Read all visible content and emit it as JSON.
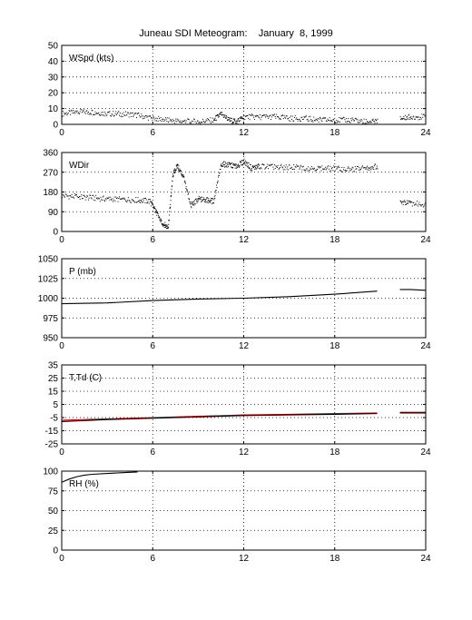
{
  "title": "Juneau SDI Meteogram:    January  8, 1999",
  "colors": {
    "black": "#000000",
    "red": "#cc0000"
  },
  "chart_data": [
    {
      "type": "scatter",
      "label": "WSpd (kts)",
      "xlim": [
        0,
        24
      ],
      "xticks": [
        0,
        6,
        12,
        18,
        24
      ],
      "ylim": [
        0,
        50
      ],
      "yticks": [
        0,
        10,
        20,
        30,
        40,
        50
      ],
      "grid": true,
      "series": [
        {
          "color": "#000000",
          "style": "dots",
          "x": [
            0,
            1,
            2,
            3,
            4,
            5,
            6,
            7,
            8,
            9,
            10,
            10.5,
            11,
            11.5,
            12,
            13,
            14,
            15,
            16,
            17,
            18,
            19,
            20,
            20.8,
            22.3,
            23,
            24
          ],
          "y": [
            7,
            8,
            8,
            7,
            7,
            6,
            4,
            3,
            2,
            2,
            3,
            7,
            3,
            2,
            5,
            5,
            5,
            4,
            4,
            3,
            3,
            3,
            2,
            2,
            4,
            5,
            5
          ]
        }
      ]
    },
    {
      "type": "scatter",
      "label": "WDir",
      "xlim": [
        0,
        24
      ],
      "xticks": [
        0,
        6,
        12,
        18,
        24
      ],
      "ylim": [
        0,
        360
      ],
      "yticks": [
        0,
        90,
        180,
        270,
        360
      ],
      "grid": true,
      "series": [
        {
          "color": "#000000",
          "style": "dots",
          "x": [
            0,
            1,
            2,
            3,
            4,
            5,
            5.8,
            6.2,
            6.6,
            7,
            7.3,
            7.6,
            8,
            8.5,
            9,
            9.5,
            10,
            10.5,
            11,
            11.5,
            12,
            12.5,
            13,
            14,
            15,
            16,
            17,
            18,
            19,
            20,
            20.8,
            22.3,
            23,
            24
          ],
          "y": [
            165,
            160,
            155,
            150,
            148,
            145,
            140,
            90,
            40,
            20,
            260,
            300,
            250,
            120,
            150,
            145,
            140,
            310,
            305,
            300,
            320,
            290,
            300,
            295,
            295,
            292,
            290,
            288,
            285,
            290,
            300,
            135,
            130,
            125
          ]
        }
      ]
    },
    {
      "type": "line",
      "label": "P (mb)",
      "xlim": [
        0,
        24
      ],
      "xticks": [
        0,
        6,
        12,
        18,
        24
      ],
      "ylim": [
        950,
        1050
      ],
      "yticks": [
        950,
        975,
        1000,
        1025,
        1050
      ],
      "grid": true,
      "series": [
        {
          "color": "#000000",
          "x": [
            0,
            3,
            6,
            9,
            12,
            15,
            18,
            20.8
          ],
          "y": [
            993,
            994,
            997,
            999,
            1000,
            1002,
            1005,
            1009
          ]
        },
        {
          "color": "#000000",
          "x": [
            22.3,
            23,
            24
          ],
          "y": [
            1011,
            1011,
            1010
          ]
        }
      ]
    },
    {
      "type": "line",
      "label": "T,Td (C)",
      "xlim": [
        0,
        24
      ],
      "xticks": [
        0,
        6,
        12,
        18,
        24
      ],
      "ylim": [
        -25,
        35
      ],
      "yticks": [
        -25,
        -15,
        -5,
        5,
        15,
        25,
        35
      ],
      "grid": true,
      "series": [
        {
          "color": "#cc0000",
          "x": [
            0,
            3,
            6,
            9,
            12,
            15,
            18,
            20.8
          ],
          "y": [
            -7,
            -6,
            -5,
            -4,
            -3,
            -2.5,
            -2,
            -1.5
          ]
        },
        {
          "color": "#cc0000",
          "x": [
            22.3,
            24
          ],
          "y": [
            -1,
            -1
          ]
        },
        {
          "color": "#000000",
          "x": [
            0,
            3,
            6,
            9,
            12,
            15,
            18,
            20.8
          ],
          "y": [
            -8,
            -6.5,
            -5.5,
            -4.5,
            -3.5,
            -3,
            -2.5,
            -2
          ]
        },
        {
          "color": "#000000",
          "x": [
            22.3,
            24
          ],
          "y": [
            -1.5,
            -1.5
          ]
        }
      ]
    },
    {
      "type": "line",
      "label": "RH (%)",
      "xlim": [
        0,
        24
      ],
      "xticks": [
        0,
        6,
        12,
        18,
        24
      ],
      "ylim": [
        0,
        100
      ],
      "yticks": [
        0,
        25,
        50,
        75,
        100
      ],
      "grid": true,
      "series": [
        {
          "color": "#000000",
          "x": [
            0,
            0.5,
            1,
            1.5,
            2,
            3,
            4,
            5
          ],
          "y": [
            86,
            90,
            93,
            95,
            96,
            97,
            98,
            99
          ]
        }
      ]
    }
  ]
}
